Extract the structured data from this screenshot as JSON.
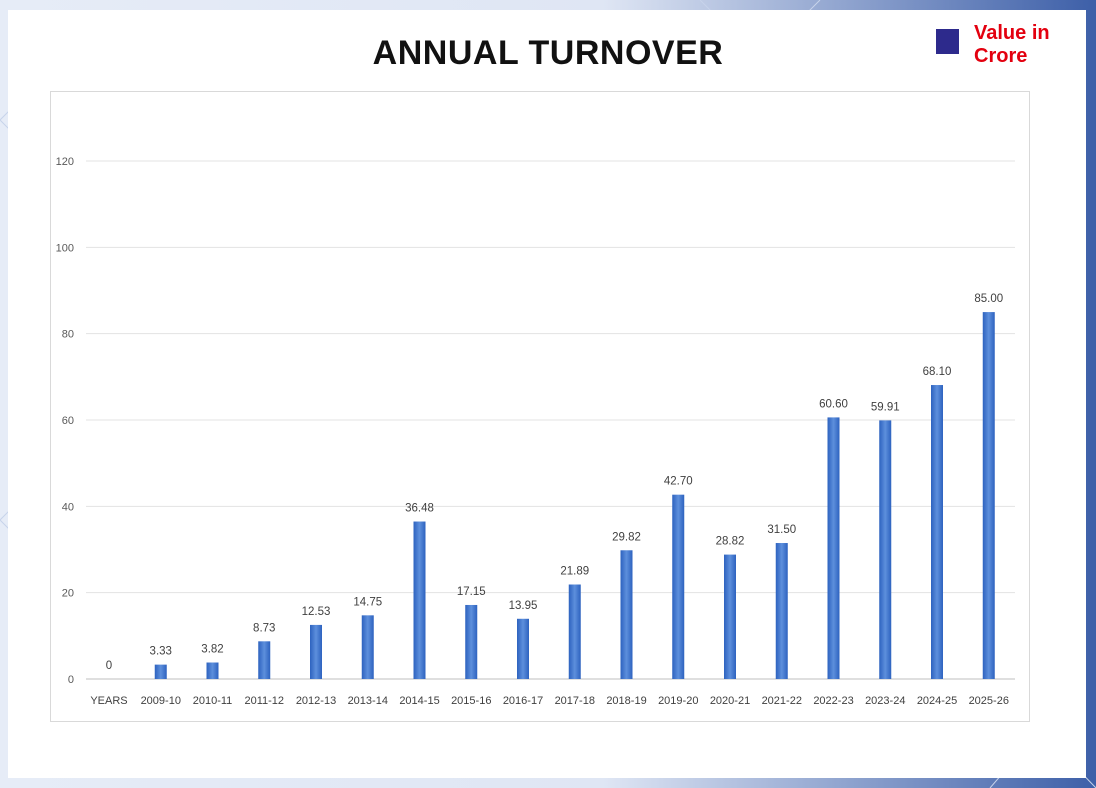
{
  "title": "ANNUAL TURNOVER",
  "legend": {
    "label": "Value in Crore",
    "color": "#2d2a8c"
  },
  "chart_data": {
    "type": "bar",
    "title": "ANNUAL TURNOVER",
    "categories": [
      "YEARS",
      "2009-10",
      "2010-11",
      "2011-12",
      "2012-13",
      "2013-14",
      "2014-15",
      "2015-16",
      "2016-17",
      "2017-18",
      "2018-19",
      "2019-20",
      "2020-21",
      "2021-22",
      "2022-23",
      "2023-24",
      "2024-25",
      "2025-26"
    ],
    "series": [
      {
        "name": "Value in Crore",
        "values": [
          0,
          3.33,
          3.82,
          8.73,
          12.53,
          14.75,
          36.48,
          17.15,
          13.95,
          21.89,
          29.82,
          42.7,
          28.82,
          31.5,
          60.6,
          59.91,
          68.1,
          85.0
        ],
        "labels": [
          "0",
          "3.33",
          "3.82",
          "8.73",
          "12.53",
          "14.75",
          "36.48",
          "17.15",
          "13.95",
          "21.89",
          "29.82",
          "42.70",
          "28.82",
          "31.50",
          "60.60",
          "59.91",
          "68.10",
          "85.00"
        ]
      }
    ],
    "ylim": [
      0,
      120
    ],
    "yticks": [
      0,
      20,
      40,
      60,
      80,
      100,
      120
    ],
    "grid": true,
    "legend_position": "top-right",
    "bar_color": "#3a6fc9",
    "xlabel": "",
    "ylabel": ""
  }
}
